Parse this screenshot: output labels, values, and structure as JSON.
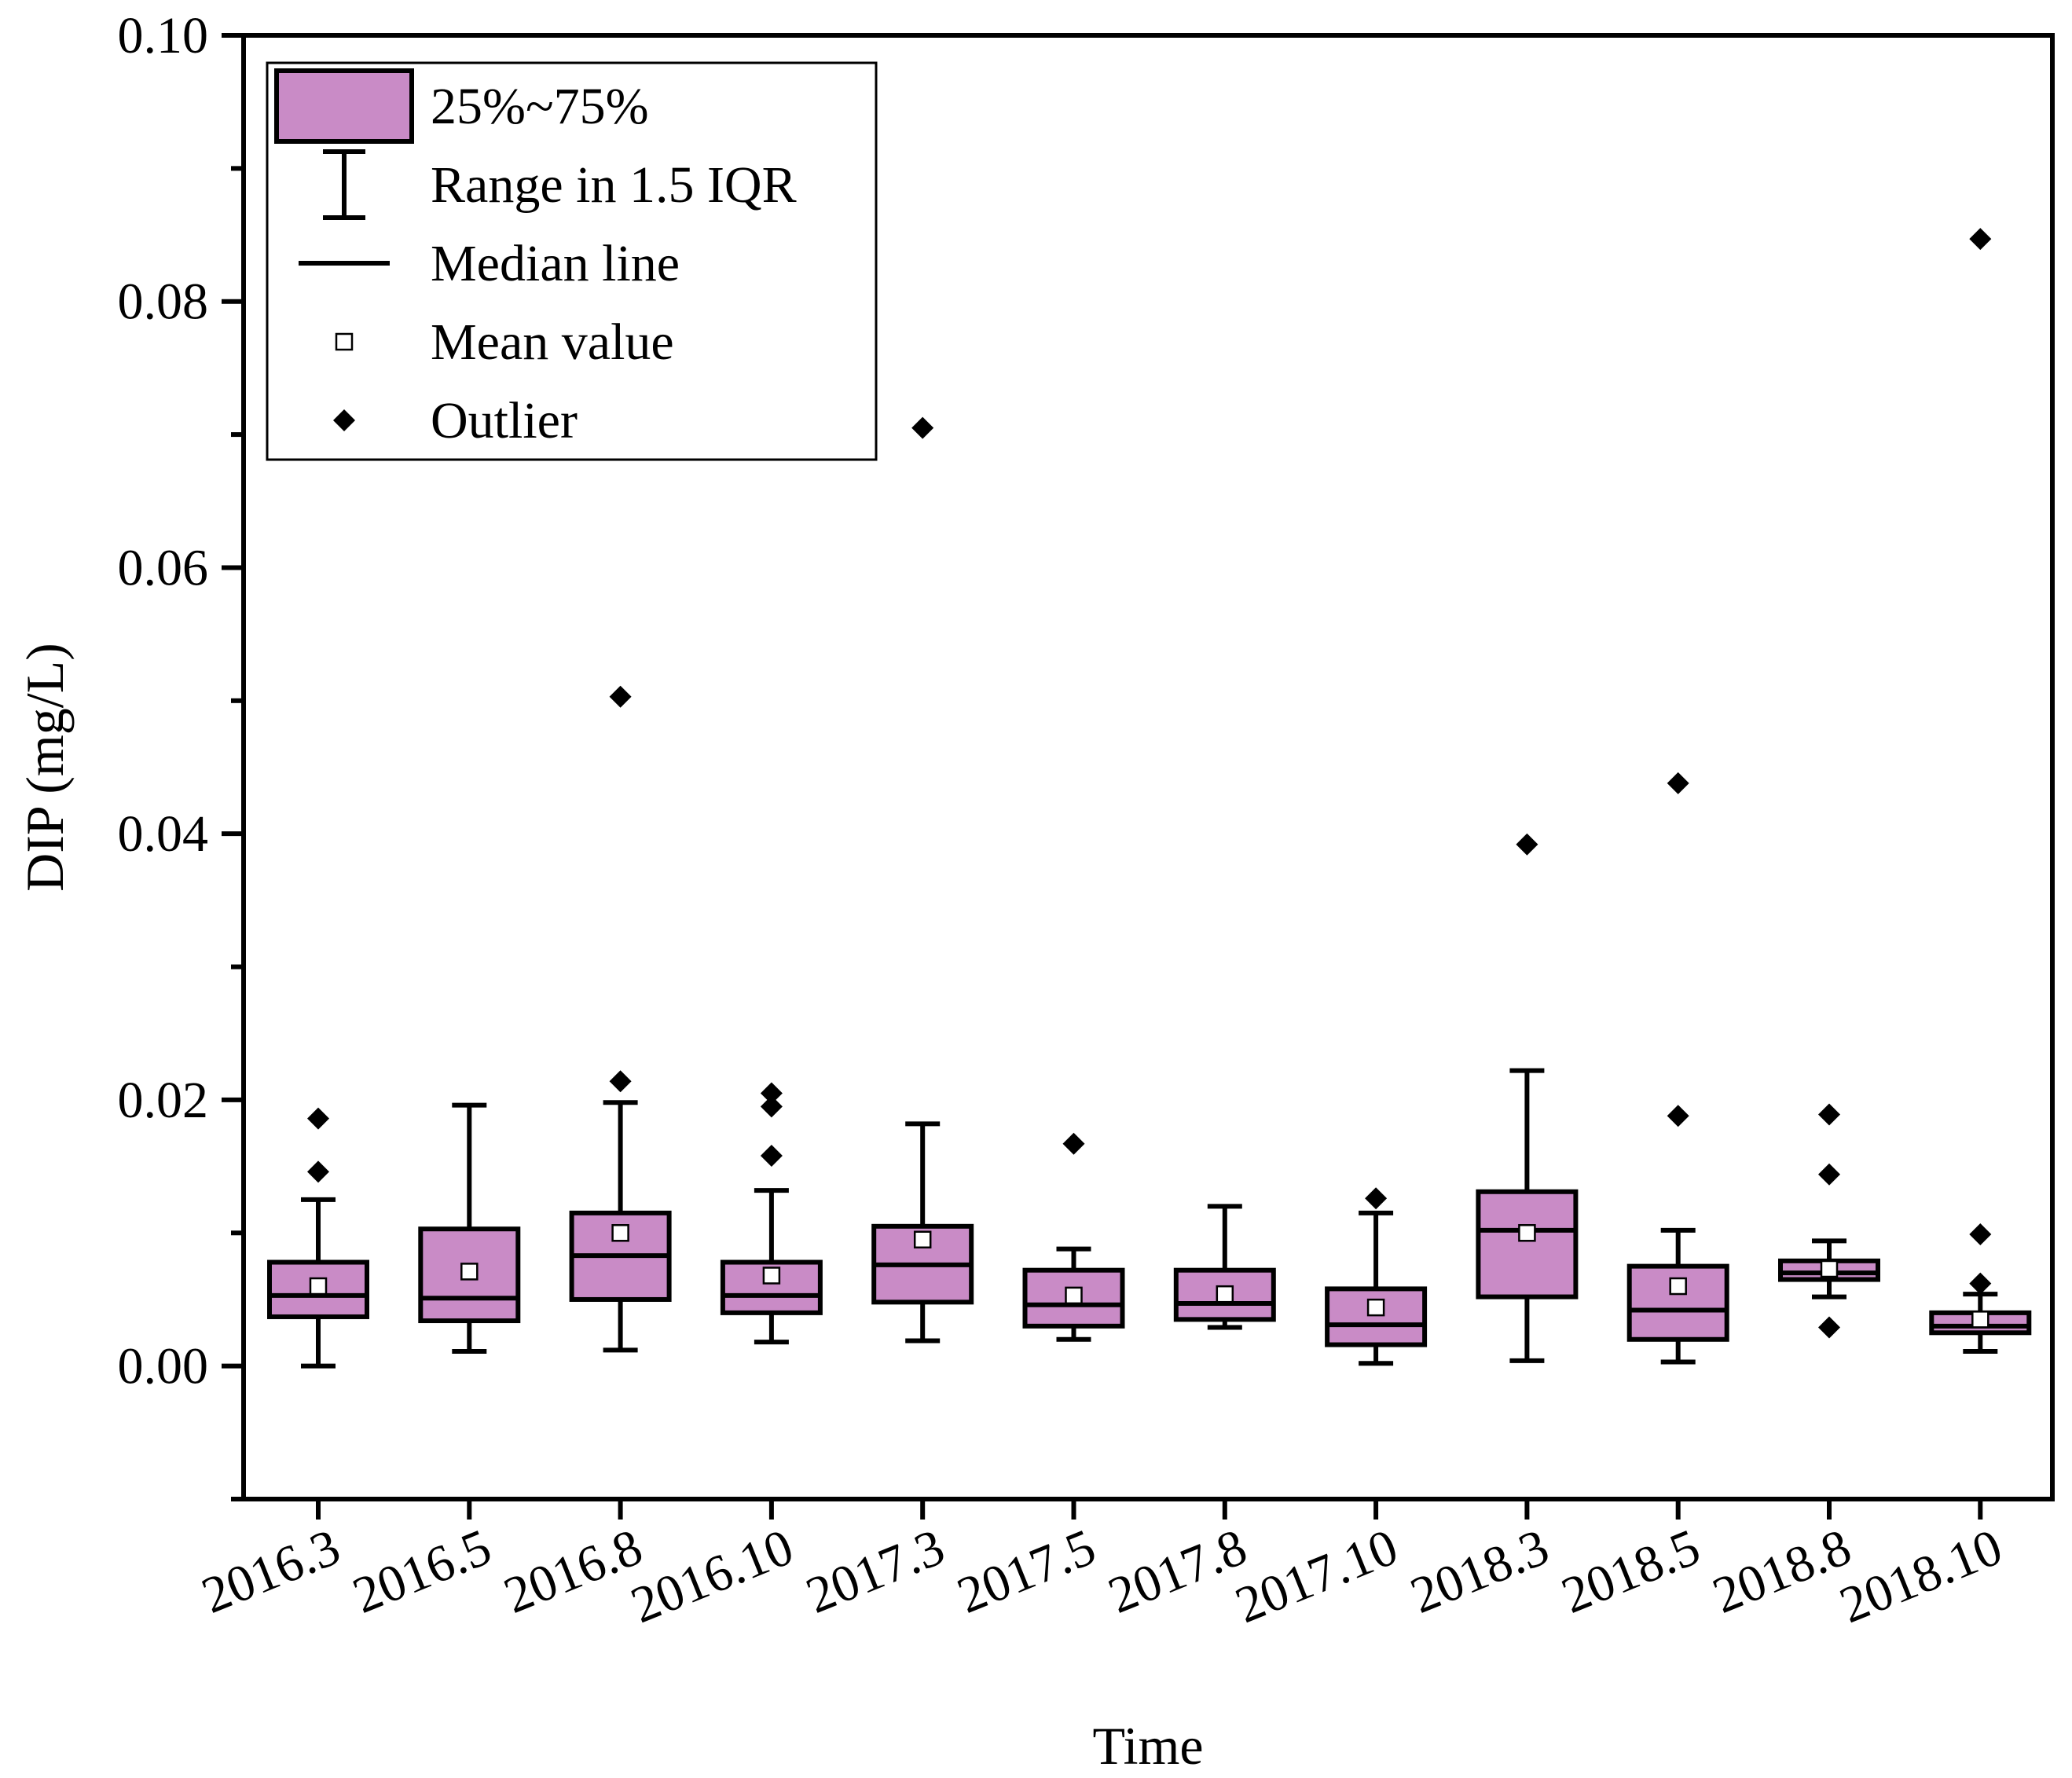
{
  "colors": {
    "box_fill": "#c98bc6",
    "line": "#000000",
    "background": "#ffffff"
  },
  "chart_data": {
    "type": "boxplot",
    "title": "",
    "xlabel": "Time",
    "ylabel": "DIP (mg/L)",
    "ylim": [
      -0.01,
      0.1
    ],
    "yticks": [
      0.0,
      0.02,
      0.04,
      0.06,
      0.08,
      0.1
    ],
    "ytick_labels": [
      "0.00",
      "0.02",
      "0.04",
      "0.06",
      "0.08",
      "0.10"
    ],
    "grid": false,
    "legend_position": "top-left",
    "legend": [
      {
        "key": "box",
        "label": "25%~75%"
      },
      {
        "key": "whisker",
        "label": "Range in 1.5 IQR"
      },
      {
        "key": "median",
        "label": "Median line"
      },
      {
        "key": "mean",
        "label": "Mean value"
      },
      {
        "key": "outlier",
        "label": "Outlier"
      }
    ],
    "categories": [
      "2016.3",
      "2016.5",
      "2016.8",
      "2016.10",
      "2017.3",
      "2017.5",
      "2017.8",
      "2017.10",
      "2018.3",
      "2018.5",
      "2018.8",
      "2018.10"
    ],
    "boxes": [
      {
        "category": "2016.3",
        "whisker_low": 0.0,
        "q1": 0.0037,
        "median": 0.0053,
        "q3": 0.0078,
        "whisker_high": 0.0125,
        "mean": 0.006,
        "outliers": [
          0.0146,
          0.0186
        ]
      },
      {
        "category": "2016.5",
        "whisker_low": 0.0011,
        "q1": 0.0034,
        "median": 0.0051,
        "q3": 0.0103,
        "whisker_high": 0.0196,
        "mean": 0.0071,
        "outliers": []
      },
      {
        "category": "2016.8",
        "whisker_low": 0.0012,
        "q1": 0.005,
        "median": 0.0083,
        "q3": 0.0115,
        "whisker_high": 0.0198,
        "mean": 0.01,
        "outliers": [
          0.0214,
          0.0503
        ]
      },
      {
        "category": "2016.10",
        "whisker_low": 0.0018,
        "q1": 0.004,
        "median": 0.0053,
        "q3": 0.0078,
        "whisker_high": 0.0132,
        "mean": 0.0068,
        "outliers": [
          0.0158,
          0.0195,
          0.0205
        ]
      },
      {
        "category": "2017.3",
        "whisker_low": 0.0019,
        "q1": 0.0048,
        "median": 0.0076,
        "q3": 0.0105,
        "whisker_high": 0.0182,
        "mean": 0.0095,
        "outliers": [
          0.0705
        ]
      },
      {
        "category": "2017.5",
        "whisker_low": 0.002,
        "q1": 0.003,
        "median": 0.0046,
        "q3": 0.0072,
        "whisker_high": 0.0088,
        "mean": 0.0053,
        "outliers": [
          0.0167
        ]
      },
      {
        "category": "2017.8",
        "whisker_low": 0.0029,
        "q1": 0.0035,
        "median": 0.0047,
        "q3": 0.0072,
        "whisker_high": 0.012,
        "mean": 0.0054,
        "outliers": []
      },
      {
        "category": "2017.10",
        "whisker_low": 0.0002,
        "q1": 0.0016,
        "median": 0.0031,
        "q3": 0.0058,
        "whisker_high": 0.0115,
        "mean": 0.0044,
        "outliers": [
          0.0126
        ]
      },
      {
        "category": "2018.3",
        "whisker_low": 0.0004,
        "q1": 0.0052,
        "median": 0.0102,
        "q3": 0.0131,
        "whisker_high": 0.0222,
        "mean": 0.01,
        "outliers": [
          0.0392
        ]
      },
      {
        "category": "2018.5",
        "whisker_low": 0.0003,
        "q1": 0.002,
        "median": 0.0042,
        "q3": 0.0075,
        "whisker_high": 0.0102,
        "mean": 0.006,
        "outliers": [
          0.0188,
          0.0438
        ]
      },
      {
        "category": "2018.8",
        "whisker_low": 0.0052,
        "q1": 0.0065,
        "median": 0.007,
        "q3": 0.0079,
        "whisker_high": 0.0094,
        "mean": 0.0073,
        "outliers": [
          0.0029,
          0.0144,
          0.0189
        ]
      },
      {
        "category": "2018.10",
        "whisker_low": 0.0011,
        "q1": 0.0025,
        "median": 0.003,
        "q3": 0.004,
        "whisker_high": 0.0054,
        "mean": 0.0035,
        "outliers": [
          0.0062,
          0.0099,
          0.0847
        ]
      }
    ]
  }
}
